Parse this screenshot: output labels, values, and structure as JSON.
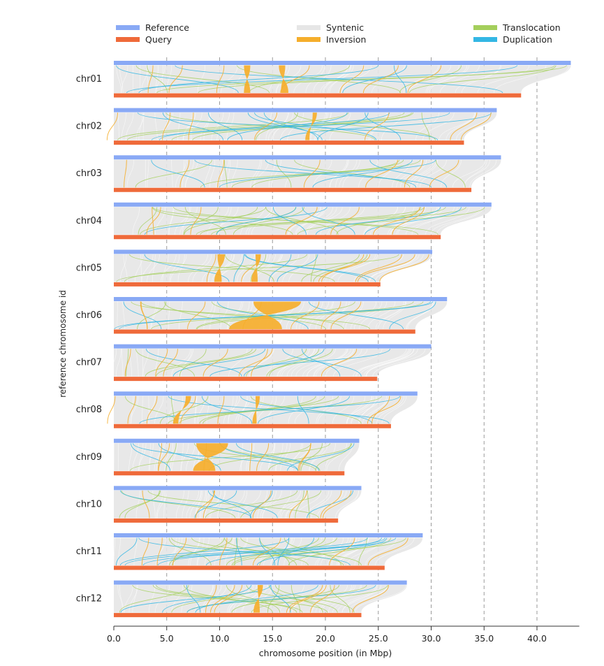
{
  "chart_data": {
    "type": "synteny",
    "xlabel": "chromosome position (in Mbp)",
    "ylabel": "reference chromosome id",
    "xlim": [
      0,
      44
    ],
    "xticks": [
      "0.0",
      "5.0",
      "10.0",
      "15.0",
      "20.0",
      "25.0",
      "30.0",
      "35.0",
      "40.0"
    ],
    "xtick_values": [
      0,
      5,
      10,
      15,
      20,
      25,
      30,
      35,
      40
    ],
    "grid": "vertical dashed",
    "legend_position": "top",
    "legend": [
      {
        "label": "Reference",
        "color": "#89a9f5"
      },
      {
        "label": "Syntenic",
        "color": "#e6e6e6"
      },
      {
        "label": "Translocation",
        "color": "#a4cf5c"
      },
      {
        "label": "Query",
        "color": "#ef6a3a"
      },
      {
        "label": "Inversion",
        "color": "#f5ae2c"
      },
      {
        "label": "Duplication",
        "color": "#34b7e4"
      }
    ],
    "chromosomes": [
      {
        "id": "chr01",
        "reference_length": 43.2,
        "query_length": 38.5,
        "inversions": [
          [
            12.3,
            12.9,
            12.3,
            12.9
          ],
          [
            15.6,
            16.2,
            15.8,
            16.5
          ]
        ]
      },
      {
        "id": "chr02",
        "reference_length": 36.2,
        "query_length": 33.1,
        "inversions": [
          [
            18.8,
            19.2,
            18.1,
            18.5
          ]
        ]
      },
      {
        "id": "chr03",
        "reference_length": 36.6,
        "query_length": 33.8,
        "inversions": []
      },
      {
        "id": "chr04",
        "reference_length": 35.7,
        "query_length": 30.9,
        "inversions": []
      },
      {
        "id": "chr05",
        "reference_length": 30.1,
        "query_length": 25.2,
        "inversions": [
          [
            9.8,
            10.5,
            9.5,
            10.2
          ],
          [
            13.4,
            13.9,
            13.0,
            13.6
          ]
        ]
      },
      {
        "id": "chr06",
        "reference_length": 31.5,
        "query_length": 28.5,
        "inversions": [
          [
            13.2,
            17.7,
            10.9,
            15.9
          ]
        ]
      },
      {
        "id": "chr07",
        "reference_length": 30.0,
        "query_length": 24.9,
        "inversions": []
      },
      {
        "id": "chr08",
        "reference_length": 28.7,
        "query_length": 26.2,
        "inversions": [
          [
            6.8,
            7.3,
            5.6,
            6.1
          ],
          [
            13.4,
            13.8,
            13.1,
            13.5
          ]
        ]
      },
      {
        "id": "chr09",
        "reference_length": 23.2,
        "query_length": 21.8,
        "inversions": [
          [
            7.8,
            10.8,
            7.5,
            9.6
          ]
        ]
      },
      {
        "id": "chr10",
        "reference_length": 23.4,
        "query_length": 21.2,
        "inversions": []
      },
      {
        "id": "chr11",
        "reference_length": 29.2,
        "query_length": 25.6,
        "inversions": []
      },
      {
        "id": "chr12",
        "reference_length": 27.7,
        "query_length": 23.4,
        "inversions": [
          [
            13.6,
            14.1,
            13.2,
            13.8
          ]
        ]
      }
    ]
  }
}
